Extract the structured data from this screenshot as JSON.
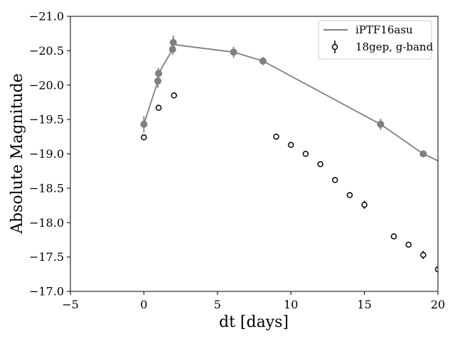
{
  "chart_data": {
    "type": "scatter",
    "xlabel": "dt [days]",
    "ylabel": "Absolute Magnitude",
    "xlim": [
      -5,
      20
    ],
    "ylim": [
      -17.0,
      -21.0
    ],
    "y_inverted": true,
    "xticks": [
      -5,
      0,
      5,
      10,
      15,
      20
    ],
    "xtick_labels": [
      "−5",
      "0",
      "5",
      "10",
      "15",
      "20"
    ],
    "yticks": [
      -17.0,
      -17.5,
      -18.0,
      -18.5,
      -19.0,
      -19.5,
      -20.0,
      -20.5,
      -21.0
    ],
    "ytick_labels": [
      "−17.0",
      "−17.5",
      "−18.0",
      "−18.5",
      "−19.0",
      "−19.5",
      "−20.0",
      "−20.5",
      "−21.0"
    ],
    "grid": false,
    "legend_position": "top-right",
    "series": [
      {
        "name": "iPTF16asu",
        "style": "line-with-errorbar-points",
        "color": "#808080",
        "line_x": [
          0.0,
          0.95,
          1.0,
          1.95,
          2.0,
          6.1,
          8.1,
          16.1,
          19.0,
          20.0
        ],
        "line_y": [
          -19.43,
          -20.06,
          -20.17,
          -20.52,
          -20.59,
          -20.48,
          -20.35,
          -19.43,
          -19.0,
          -18.9
        ],
        "points": [
          {
            "x": 0.0,
            "y": -19.43,
            "err": 0.12
          },
          {
            "x": 0.95,
            "y": -20.06,
            "err": 0.1
          },
          {
            "x": 1.0,
            "y": -20.17,
            "err": 0.08
          },
          {
            "x": 1.95,
            "y": -20.52,
            "err": 0.08
          },
          {
            "x": 2.0,
            "y": -20.62,
            "err": 0.1
          },
          {
            "x": 6.1,
            "y": -20.48,
            "err": 0.08
          },
          {
            "x": 8.1,
            "y": -20.35,
            "err": 0.06
          },
          {
            "x": 16.1,
            "y": -19.43,
            "err": 0.08
          },
          {
            "x": 19.0,
            "y": -19.0,
            "err": 0.03
          }
        ]
      },
      {
        "name": "18gep, g-band",
        "style": "open-circle-errorbar",
        "color": "#000000",
        "points": [
          {
            "x": 0.0,
            "y": -19.24,
            "err": 0.03
          },
          {
            "x": 1.0,
            "y": -19.67,
            "err": 0.02
          },
          {
            "x": 2.05,
            "y": -19.85,
            "err": 0.02
          },
          {
            "x": 9.0,
            "y": -19.25,
            "err": 0.02
          },
          {
            "x": 10.0,
            "y": -19.13,
            "err": 0.02
          },
          {
            "x": 11.0,
            "y": -19.0,
            "err": 0.02
          },
          {
            "x": 12.0,
            "y": -18.85,
            "err": 0.02
          },
          {
            "x": 13.0,
            "y": -18.62,
            "err": 0.02
          },
          {
            "x": 14.0,
            "y": -18.4,
            "err": 0.02
          },
          {
            "x": 15.0,
            "y": -18.26,
            "err": 0.06
          },
          {
            "x": 17.0,
            "y": -17.8,
            "err": 0.02
          },
          {
            "x": 18.0,
            "y": -17.68,
            "err": 0.02
          },
          {
            "x": 19.0,
            "y": -17.53,
            "err": 0.06
          },
          {
            "x": 20.0,
            "y": -17.32,
            "err": 0.03
          }
        ]
      }
    ]
  }
}
